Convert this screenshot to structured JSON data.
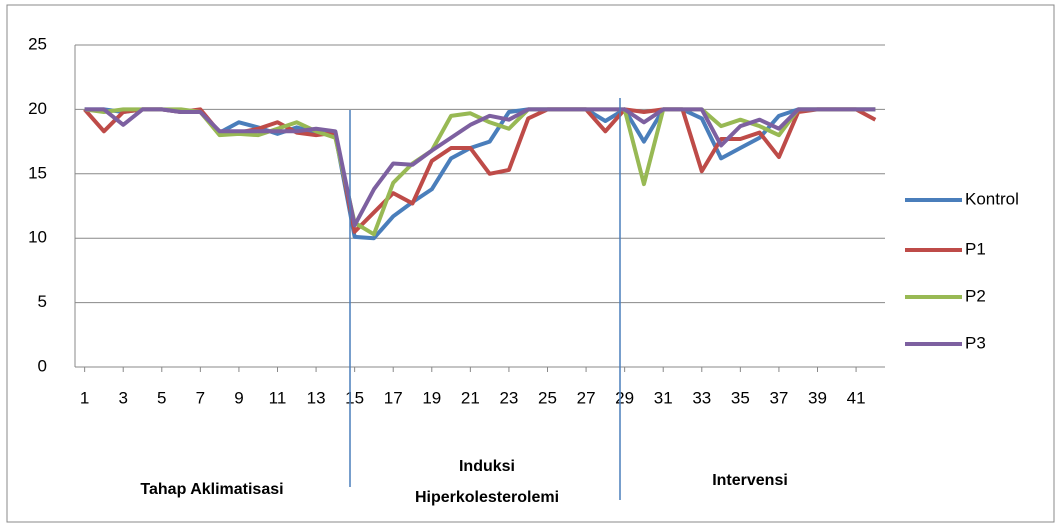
{
  "chart_data": {
    "type": "line",
    "x": [
      1,
      2,
      3,
      4,
      5,
      6,
      7,
      8,
      9,
      10,
      11,
      12,
      13,
      14,
      15,
      16,
      17,
      18,
      19,
      20,
      21,
      22,
      23,
      24,
      25,
      26,
      27,
      28,
      29,
      30,
      31,
      32,
      33,
      34,
      35,
      36,
      37,
      38,
      39,
      40,
      41,
      42
    ],
    "xlim": [
      0.5,
      42.5
    ],
    "xticks": [
      1,
      3,
      5,
      7,
      9,
      11,
      13,
      15,
      17,
      19,
      21,
      23,
      25,
      27,
      29,
      31,
      33,
      35,
      37,
      39,
      41
    ],
    "ylim": [
      0,
      25
    ],
    "yticks": [
      0,
      5,
      10,
      15,
      20,
      25
    ],
    "grid": true,
    "legend": "right",
    "series": [
      {
        "name": "Kontrol",
        "color": "#4a7ebb",
        "values": [
          20,
          20,
          19.8,
          20,
          20,
          19.8,
          19.8,
          18.2,
          19,
          18.6,
          18.1,
          18.6,
          18.2,
          18,
          10.1,
          10,
          11.7,
          12.8,
          13.8,
          16.2,
          17,
          17.5,
          19.8,
          20,
          20,
          20,
          20,
          19.1,
          20,
          17.5,
          20,
          20,
          19.3,
          16.2,
          17,
          17.8,
          19.5,
          20,
          20,
          20,
          20,
          20
        ]
      },
      {
        "name": "P1",
        "color": "#be4b48",
        "values": [
          20,
          18.3,
          19.8,
          20,
          20,
          19.8,
          20,
          18.2,
          18.2,
          18.5,
          19,
          18.2,
          18,
          18.2,
          10.5,
          12,
          13.5,
          12.7,
          16,
          17,
          17,
          15,
          15.3,
          19.3,
          20,
          20,
          20,
          18.3,
          20,
          19.8,
          20,
          20,
          15.2,
          17.7,
          17.7,
          18.2,
          16.3,
          19.8,
          20,
          20,
          20,
          19.2
        ]
      },
      {
        "name": "P2",
        "color": "#98b954",
        "values": [
          20,
          19.8,
          20,
          20,
          20,
          20,
          19.8,
          18,
          18.1,
          18,
          18.5,
          19,
          18.3,
          17.8,
          11.2,
          10.3,
          14.3,
          15.8,
          16.8,
          19.5,
          19.7,
          19,
          18.5,
          20,
          20,
          20,
          20,
          20,
          20,
          14.2,
          20,
          20,
          20,
          18.7,
          19.2,
          18.7,
          18,
          20,
          20,
          20,
          20,
          20
        ]
      },
      {
        "name": "P3",
        "color": "#7d60a0",
        "values": [
          20,
          20,
          18.8,
          20,
          20,
          19.8,
          19.8,
          18.3,
          18.3,
          18.3,
          18.3,
          18.3,
          18.5,
          18.3,
          11,
          13.8,
          15.8,
          15.7,
          16.8,
          17.8,
          18.8,
          19.5,
          19.2,
          20,
          20,
          20,
          20,
          20,
          20,
          19,
          20,
          20,
          20,
          17.2,
          18.7,
          19.2,
          18.5,
          20,
          20,
          20,
          20,
          20
        ]
      }
    ],
    "annotations": [
      "Tahap Aklimatisasi",
      "Induksi",
      "Hiperkolesterolemi",
      "Intervensi"
    ]
  }
}
